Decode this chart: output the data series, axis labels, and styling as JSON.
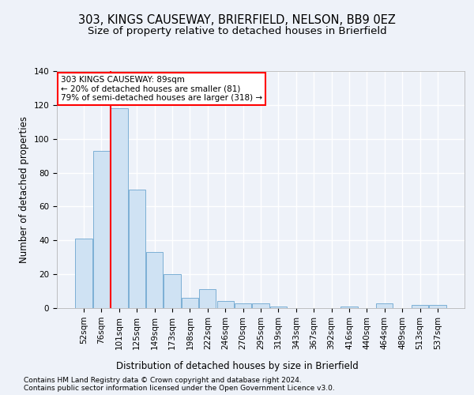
{
  "title1": "303, KINGS CAUSEWAY, BRIERFIELD, NELSON, BB9 0EZ",
  "title2": "Size of property relative to detached houses in Brierfield",
  "xlabel": "Distribution of detached houses by size in Brierfield",
  "ylabel": "Number of detached properties",
  "bar_color": "#cfe2f3",
  "bar_edge_color": "#7bafd4",
  "categories": [
    "52sqm",
    "76sqm",
    "101sqm",
    "125sqm",
    "149sqm",
    "173sqm",
    "198sqm",
    "222sqm",
    "246sqm",
    "270sqm",
    "295sqm",
    "319sqm",
    "343sqm",
    "367sqm",
    "392sqm",
    "416sqm",
    "440sqm",
    "464sqm",
    "489sqm",
    "513sqm",
    "537sqm"
  ],
  "values": [
    41,
    93,
    118,
    70,
    33,
    20,
    6,
    11,
    4,
    3,
    3,
    1,
    0,
    0,
    0,
    1,
    0,
    3,
    0,
    2,
    2
  ],
  "ylim": [
    0,
    140
  ],
  "yticks": [
    0,
    20,
    40,
    60,
    80,
    100,
    120,
    140
  ],
  "property_label": "303 KINGS CAUSEWAY: 89sqm",
  "pct_smaller": "20% of detached houses are smaller (81)",
  "pct_larger": "79% of semi-detached houses are larger (318)",
  "red_line_x": 1.5,
  "footnote1": "Contains HM Land Registry data © Crown copyright and database right 2024.",
  "footnote2": "Contains public sector information licensed under the Open Government Licence v3.0.",
  "background_color": "#eef2f9",
  "grid_color": "#ffffff",
  "title_fontsize": 10.5,
  "subtitle_fontsize": 9.5,
  "axis_label_fontsize": 8.5,
  "tick_fontsize": 7.5,
  "footnote_fontsize": 6.5
}
